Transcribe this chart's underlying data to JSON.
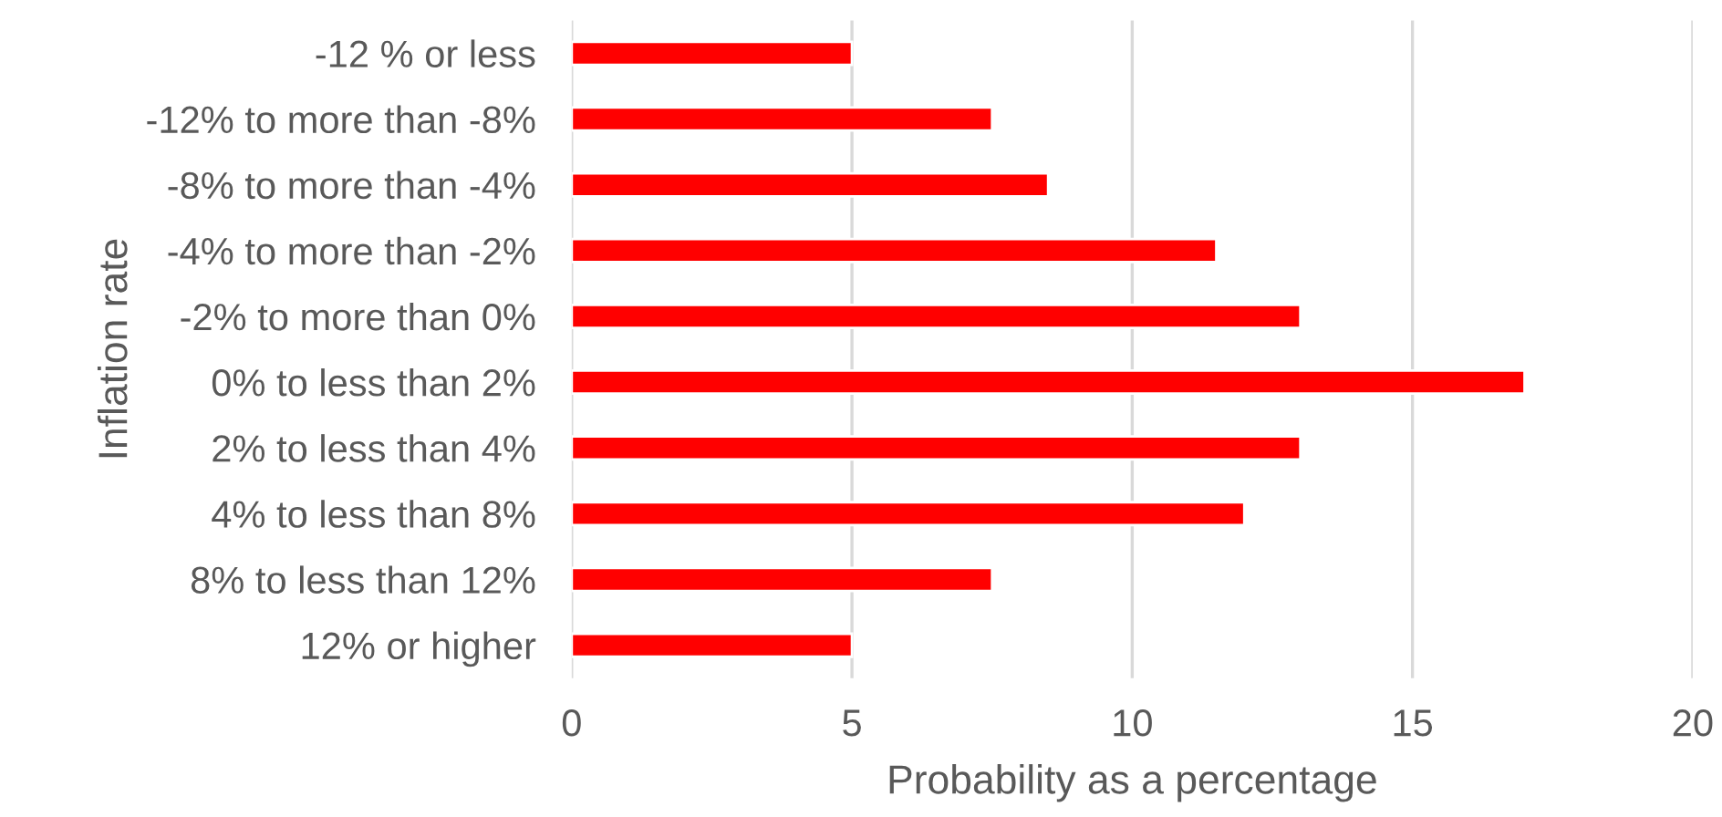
{
  "chart_data": {
    "type": "bar",
    "orientation": "horizontal",
    "xlabel": "Probability as a percentage",
    "ylabel": "Inflation rate",
    "categories": [
      "-12 % or less",
      "-12% to more than -8%",
      "-8% to more than -4%",
      "-4% to more than -2%",
      "-2% to more than 0%",
      "0% to less than 2%",
      "2% to less than 4%",
      "4% to less than 8%",
      "8% to less than 12%",
      "12% or higher"
    ],
    "values": [
      5,
      7.5,
      8.5,
      11.5,
      13,
      17,
      13,
      12,
      7.5,
      5
    ],
    "color": "#ff0000",
    "xlim": [
      0,
      20
    ],
    "xticks": [
      0,
      5,
      10,
      15,
      20
    ],
    "grid": "x",
    "legend": false
  }
}
